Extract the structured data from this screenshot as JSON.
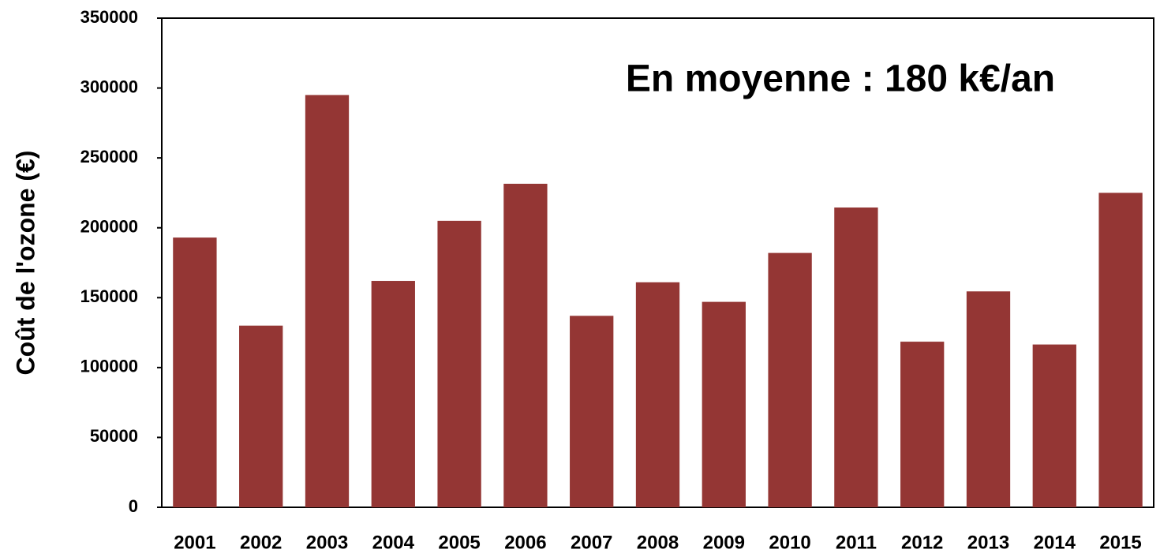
{
  "chart_data": {
    "type": "bar",
    "y_label": "Coût de l'ozone (€)",
    "annotation": "En moyenne  : 180 k€/an",
    "categories": [
      "2001",
      "2002",
      "2003",
      "2004",
      "2005",
      "2006",
      "2007",
      "2008",
      "2009",
      "2010",
      "2011",
      "2012",
      "2013",
      "2014",
      "2015"
    ],
    "values": [
      193000,
      130000,
      295000,
      162000,
      205000,
      231500,
      137000,
      161000,
      147000,
      182000,
      214500,
      118500,
      154500,
      116500,
      225000
    ],
    "color": "#943634",
    "ylim": [
      0,
      350000
    ],
    "yticks": [
      0,
      50000,
      100000,
      150000,
      200000,
      250000,
      300000,
      350000
    ],
    "grid": false
  }
}
